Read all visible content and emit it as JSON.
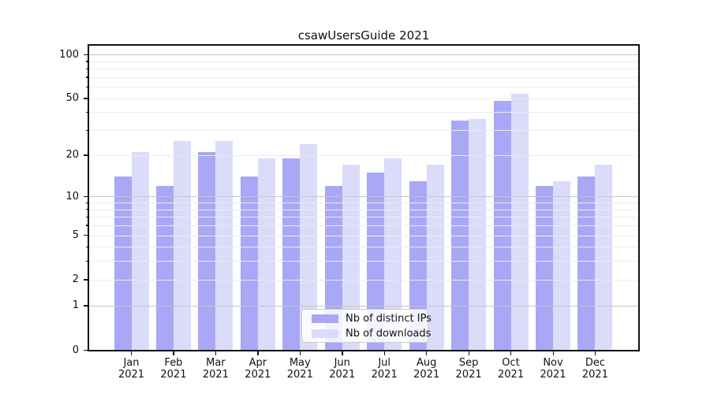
{
  "title": "csawUsersGuide 2021",
  "legend": {
    "items": [
      {
        "label": "Nb of distinct IPs",
        "color": "#a8a8f6"
      },
      {
        "label": "Nb of downloads",
        "color": "#dbdbfa"
      }
    ]
  },
  "chart_data": {
    "type": "bar",
    "title": "csawUsersGuide 2021",
    "categories": [
      "Jan\n2021",
      "Feb\n2021",
      "Mar\n2021",
      "Apr\n2021",
      "May\n2021",
      "Jun\n2021",
      "Jul\n2021",
      "Aug\n2021",
      "Sep\n2021",
      "Oct\n2021",
      "Nov\n2021",
      "Dec\n2021"
    ],
    "series": [
      {
        "name": "Nb of distinct IPs",
        "color": "#a8a8f6",
        "values": [
          14,
          12,
          21,
          14,
          19,
          12,
          15,
          13,
          35,
          48,
          12,
          14
        ]
      },
      {
        "name": "Nb of downloads",
        "color": "#dbdbfa",
        "values": [
          21,
          25,
          25,
          19,
          24,
          17,
          19,
          17,
          36,
          54,
          13,
          17
        ]
      }
    ],
    "xlabel": "",
    "ylabel": "",
    "yscale": "symlog",
    "ylim": [
      0,
      115
    ],
    "yticks": [
      0,
      1,
      2,
      5,
      10,
      20,
      50,
      100
    ],
    "major_gridlines": [
      1,
      10,
      100
    ],
    "minor_gridlines": [
      2,
      3,
      4,
      5,
      6,
      7,
      8,
      9,
      20,
      30,
      40,
      50,
      60,
      70,
      80,
      90
    ],
    "grid": true,
    "legend_position": "lower center",
    "grid_color_minor": "#ececec",
    "grid_color_major": "#c6c6c6",
    "spine_color": "#111111"
  }
}
